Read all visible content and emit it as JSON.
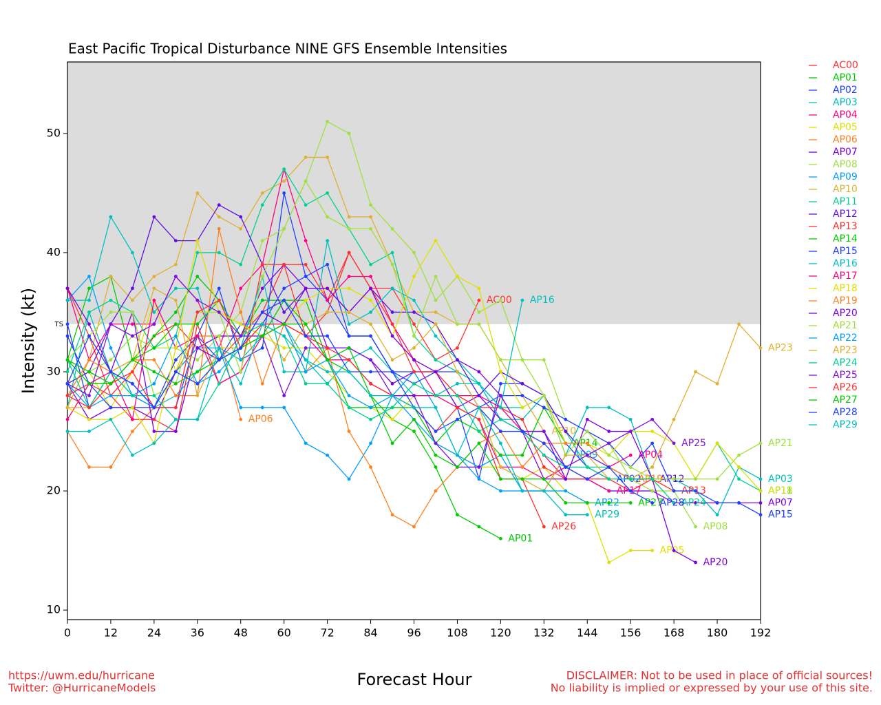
{
  "chart_data": {
    "type": "line",
    "title": "East Pacific Tropical Disturbance NINE GFS Ensemble Intensities",
    "x_label": "Forecast Hour",
    "y_label": "Intensity (kt)",
    "footer_left": [
      "https://uwm.edu/hurricane",
      "Twitter: @HurricaneModels"
    ],
    "footer_right": [
      "DISCLAIMER: Not to be used in place of official sources!",
      "No liability is implied or expressed by your use of this site."
    ],
    "threshold": {
      "value": 34,
      "label": "TS",
      "color": "#dcdcdc"
    },
    "xlim": [
      0,
      192
    ],
    "xticks": [
      0,
      12,
      24,
      36,
      48,
      60,
      72,
      84,
      96,
      108,
      120,
      132,
      144,
      156,
      168,
      180,
      192
    ],
    "ylim": [
      9.2,
      56
    ],
    "yticks": [
      10,
      20,
      30,
      40,
      50
    ],
    "legend": "right",
    "x": [
      0,
      6,
      12,
      18,
      24,
      30,
      36,
      42,
      48,
      54,
      60,
      66,
      72,
      78,
      84,
      90,
      96,
      102,
      108,
      114,
      120,
      126,
      132,
      138,
      144,
      150,
      156,
      162,
      168,
      174,
      180,
      186,
      192
    ],
    "series": [
      {
        "name": "AC00",
        "color": "#ff3030",
        "values": [
          37,
          33,
          28,
          30,
          33,
          34,
          32,
          31,
          33,
          35,
          39,
          39,
          36,
          40,
          37,
          37,
          34,
          31,
          32,
          36,
          null,
          null,
          null,
          null,
          null,
          null,
          null,
          null,
          null,
          null,
          null,
          null,
          null
        ]
      },
      {
        "name": "AP01",
        "color": "#00cc00",
        "values": [
          31,
          37,
          38,
          31,
          33,
          35,
          38,
          36,
          33,
          36,
          36,
          34,
          31,
          30,
          28,
          26,
          25,
          22,
          18,
          17,
          16,
          null,
          null,
          null,
          null,
          null,
          null,
          null,
          null,
          null,
          null,
          null,
          null
        ]
      },
      {
        "name": "AP02",
        "color": "#2040ff",
        "values": [
          34,
          27,
          30,
          29,
          27,
          27,
          33,
          37,
          31,
          32,
          45,
          38,
          36,
          33,
          33,
          30,
          30,
          30,
          27,
          21,
          29,
          29,
          28,
          24,
          22,
          21,
          null,
          null,
          null,
          null,
          null,
          null,
          null
        ]
      },
      {
        "name": "AP03",
        "color": "#00c0c0",
        "values": [
          27,
          35,
          30,
          28,
          27,
          28,
          30,
          32,
          31,
          33,
          34,
          31,
          29,
          31,
          32,
          30,
          28,
          28,
          29,
          29,
          26,
          26,
          28,
          23,
          27,
          27,
          26,
          21,
          21,
          20,
          18,
          22,
          21
        ]
      },
      {
        "name": "AP04",
        "color": "#ff0080",
        "values": [
          37,
          31,
          34,
          34,
          34,
          38,
          36,
          32,
          37,
          39,
          47,
          41,
          36,
          38,
          38,
          34,
          31,
          28,
          28,
          28,
          27,
          25,
          23,
          21,
          21,
          22,
          23,
          null,
          null,
          null,
          null,
          null,
          null
        ]
      },
      {
        "name": "AP05",
        "color": "#e0e000",
        "values": [
          29,
          30,
          27,
          30,
          36,
          30,
          35,
          35,
          34,
          33,
          32,
          32,
          30,
          28,
          27,
          26,
          28,
          24,
          23,
          22,
          22,
          21,
          22,
          20,
          19,
          14,
          15,
          15,
          null,
          null,
          null,
          null,
          null
        ]
      },
      {
        "name": "AP06",
        "color": "#ff8020",
        "values": [
          25,
          22,
          22,
          25,
          27,
          30,
          33,
          33,
          26,
          null,
          null,
          null,
          null,
          null,
          null,
          null,
          null,
          null,
          null,
          null,
          null,
          null,
          null,
          null,
          null,
          null,
          null,
          null,
          null,
          null,
          null,
          null,
          null
        ]
      },
      {
        "name": "AP07",
        "color": "#8000e0",
        "values": [
          29,
          26,
          27,
          27,
          26,
          30,
          32,
          33,
          33,
          37,
          39,
          37,
          32,
          32,
          31,
          29,
          30,
          30,
          27,
          28,
          26,
          25,
          21,
          21,
          21,
          20,
          20,
          20,
          19,
          19,
          19,
          19,
          19
        ]
      },
      {
        "name": "AP08",
        "color": "#a0e040",
        "values": [
          31,
          30,
          31,
          33,
          32,
          32,
          31,
          33,
          35,
          41,
          42,
          46,
          51,
          50,
          44,
          42,
          40,
          36,
          38,
          35,
          36,
          31,
          31,
          26,
          25,
          24,
          21,
          20,
          20,
          17,
          null,
          null,
          null
        ]
      },
      {
        "name": "AP09",
        "color": "#00a0ff",
        "values": [
          36,
          38,
          32,
          28,
          27,
          30,
          32,
          32,
          27,
          27,
          27,
          24,
          23,
          21,
          24,
          28,
          30,
          27,
          23,
          22,
          23,
          20,
          20,
          23,
          null,
          null,
          null,
          null,
          null,
          null,
          null,
          null,
          null
        ]
      },
      {
        "name": "AP10",
        "color": "#e0b030",
        "values": [
          27,
          31,
          38,
          36,
          38,
          39,
          45,
          43,
          42,
          45,
          46,
          48,
          48,
          43,
          43,
          39,
          35,
          35,
          34,
          34,
          31,
          28,
          25,
          null,
          null,
          null,
          null,
          null,
          null,
          null,
          null,
          null,
          null
        ]
      },
      {
        "name": "AP11",
        "color": "#00d090",
        "values": [
          30,
          35,
          36,
          35,
          32,
          33,
          40,
          40,
          39,
          44,
          47,
          44,
          45,
          42,
          39,
          40,
          33,
          31,
          30,
          29,
          27,
          27,
          28,
          25,
          22,
          22,
          21,
          21,
          21,
          21,
          24,
          21,
          20
        ]
      },
      {
        "name": "AP12",
        "color": "#6010e0",
        "values": [
          29,
          30,
          34,
          37,
          43,
          41,
          41,
          44,
          43,
          39,
          35,
          37,
          37,
          35,
          37,
          35,
          35,
          34,
          31,
          28,
          30,
          29,
          28,
          25,
          23,
          22,
          21,
          21,
          null,
          null,
          null,
          null,
          null
        ]
      },
      {
        "name": "AP13",
        "color": "#ff3030",
        "values": [
          28,
          29,
          28,
          26,
          26,
          25,
          34,
          29,
          30,
          39,
          39,
          33,
          35,
          40,
          37,
          34,
          30,
          30,
          28,
          27,
          27,
          26,
          22,
          21,
          21,
          21,
          20,
          21,
          20,
          null,
          null,
          null,
          null
        ]
      },
      {
        "name": "AP14",
        "color": "#00cc00",
        "values": [
          31,
          30,
          29,
          31,
          32,
          34,
          34,
          36,
          32,
          33,
          36,
          36,
          31,
          27,
          27,
          27,
          27,
          24,
          26,
          25,
          23,
          23,
          27,
          24,
          null,
          null,
          null,
          null,
          null,
          null,
          null,
          null,
          null
        ]
      },
      {
        "name": "AP15",
        "color": "#2040ff",
        "values": [
          33,
          29,
          27,
          27,
          27,
          31,
          33,
          31,
          34,
          34,
          37,
          38,
          39,
          33,
          33,
          30,
          29,
          30,
          30,
          27,
          28,
          28,
          27,
          26,
          25,
          24,
          22,
          24,
          20,
          20,
          19,
          19,
          18
        ]
      },
      {
        "name": "AP16",
        "color": "#00c0c0",
        "values": [
          36,
          36,
          43,
          40,
          35,
          37,
          37,
          31,
          32,
          38,
          30,
          30,
          41,
          34,
          35,
          37,
          36,
          33,
          31,
          29,
          27,
          36,
          null,
          null,
          null,
          null,
          null,
          null,
          null,
          null,
          null,
          null,
          null
        ]
      },
      {
        "name": "AP17",
        "color": "#ff0080",
        "values": [
          26,
          29,
          30,
          26,
          36,
          32,
          33,
          29,
          30,
          33,
          34,
          33,
          31,
          31,
          29,
          28,
          28,
          28,
          27,
          26,
          22,
          22,
          21,
          22,
          21,
          20,
          null,
          null,
          null,
          null,
          null,
          null,
          null
        ]
      },
      {
        "name": "AP18",
        "color": "#e0e000",
        "values": [
          27,
          26,
          26,
          27,
          24,
          32,
          41,
          35,
          34,
          33,
          34,
          36,
          37,
          37,
          36,
          33,
          38,
          41,
          38,
          37,
          30,
          27,
          28,
          24,
          24,
          23,
          25,
          25,
          24,
          21,
          24,
          22,
          20
        ]
      },
      {
        "name": "AP19",
        "color": "#ff8020",
        "values": [
          28,
          31,
          30,
          31,
          31,
          28,
          28,
          42,
          35,
          29,
          34,
          30,
          32,
          25,
          22,
          18,
          17,
          20,
          22,
          24,
          25,
          22,
          24,
          24,
          24,
          22,
          21,
          null,
          null,
          null,
          null,
          null,
          null
        ]
      },
      {
        "name": "AP20",
        "color": "#8000e0",
        "values": [
          37,
          34,
          30,
          35,
          25,
          25,
          32,
          31,
          32,
          35,
          34,
          37,
          37,
          35,
          37,
          33,
          31,
          30,
          31,
          30,
          28,
          25,
          25,
          21,
          26,
          25,
          25,
          21,
          15,
          14,
          null,
          null,
          null
        ]
      },
      {
        "name": "AP21",
        "color": "#a0e040",
        "values": [
          31,
          33,
          35,
          35,
          28,
          29,
          35,
          35,
          30,
          38,
          42,
          46,
          43,
          42,
          42,
          39,
          33,
          38,
          34,
          34,
          31,
          31,
          28,
          23,
          25,
          23,
          22,
          21,
          21,
          21,
          21,
          23,
          24
        ]
      },
      {
        "name": "AP22",
        "color": "#00a0ff",
        "values": [
          29,
          27,
          28,
          28,
          29,
          33,
          29,
          30,
          32,
          34,
          34,
          30,
          31,
          28,
          27,
          28,
          26,
          24,
          23,
          21,
          20,
          20,
          20,
          20,
          19,
          null,
          null,
          null,
          null,
          null,
          null,
          null,
          null
        ]
      },
      {
        "name": "AP23",
        "color": "#e0b030",
        "values": [
          27,
          27,
          30,
          31,
          37,
          36,
          28,
          32,
          32,
          34,
          31,
          34,
          35,
          35,
          34,
          31,
          32,
          34,
          30,
          27,
          22,
          21,
          20,
          23,
          23,
          21,
          21,
          22,
          26,
          30,
          29,
          34,
          32
        ]
      },
      {
        "name": "AP24",
        "color": "#00d090",
        "values": [
          31,
          27,
          30,
          28,
          28,
          26,
          26,
          29,
          33,
          34,
          33,
          29,
          29,
          27,
          26,
          27,
          29,
          28,
          28,
          25,
          26,
          25,
          23,
          22,
          22,
          21,
          21,
          21,
          19,
          null,
          null,
          null,
          null
        ]
      },
      {
        "name": "AP25",
        "color": "#8010e0",
        "values": [
          29,
          28,
          34,
          33,
          34,
          38,
          36,
          35,
          33,
          33,
          28,
          32,
          32,
          32,
          31,
          28,
          28,
          24,
          22,
          22,
          28,
          25,
          25,
          22,
          23,
          24,
          25,
          26,
          24,
          null,
          null,
          null,
          null
        ]
      },
      {
        "name": "AP26",
        "color": "#ff3030",
        "values": [
          28,
          27,
          29,
          30,
          27,
          27,
          35,
          36,
          32,
          34,
          34,
          33,
          32,
          31,
          29,
          28,
          27,
          25,
          27,
          26,
          21,
          21,
          17,
          null,
          null,
          null,
          null,
          null,
          null,
          null,
          null,
          null,
          null
        ]
      },
      {
        "name": "AP27",
        "color": "#00cc00",
        "values": [
          31,
          29,
          29,
          31,
          30,
          29,
          30,
          31,
          32,
          33,
          34,
          34,
          31,
          32,
          28,
          24,
          26,
          23,
          22,
          24,
          21,
          21,
          21,
          19,
          19,
          19,
          19,
          null,
          null,
          null,
          null,
          null,
          null
        ]
      },
      {
        "name": "AP28",
        "color": "#2040ff",
        "values": [
          29,
          33,
          30,
          29,
          27,
          30,
          29,
          31,
          32,
          35,
          36,
          33,
          33,
          30,
          30,
          30,
          27,
          25,
          26,
          27,
          25,
          25,
          24,
          22,
          21,
          22,
          20,
          19,
          null,
          null,
          null,
          null,
          null
        ]
      },
      {
        "name": "AP29",
        "color": "#00c0c0",
        "values": [
          25,
          25,
          26,
          23,
          24,
          26,
          26,
          32,
          29,
          34,
          33,
          31,
          30,
          30,
          28,
          28,
          27,
          27,
          23,
          27,
          24,
          20,
          20,
          18,
          18,
          null,
          null,
          null,
          null,
          null,
          null,
          null,
          null
        ]
      }
    ]
  }
}
